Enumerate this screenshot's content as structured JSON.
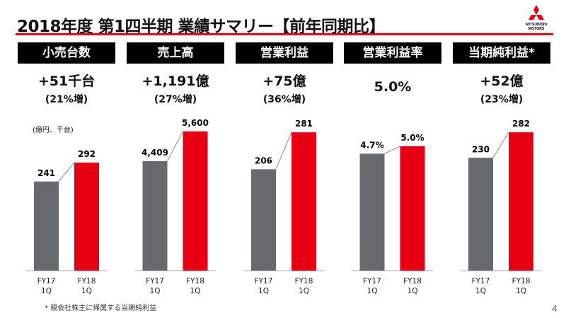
{
  "title": "2018年度 第1四半期 業績サマリー【前年同期比】",
  "logo_text": "MITSUBISHI MOTORS",
  "unit_label": "(億円、千台)",
  "footnote": "* 親会社株主に帰属する当期純利益",
  "page_number": "4",
  "colors": {
    "fy17": "#696a6e",
    "fy18": "#e60012",
    "accent": "#e60012"
  },
  "panels": [
    {
      "header": "小売台数",
      "change": "+51千台",
      "change_pct": "(21%増)"
    },
    {
      "header": "売上高",
      "change": "+1,191億",
      "change_pct": "(27%増)"
    },
    {
      "header": "営業利益",
      "change": "+75億",
      "change_pct": "(36%増)"
    },
    {
      "header": "営業利益率",
      "change": "5.0%",
      "change_pct": ""
    },
    {
      "header": "当期純利益*",
      "change": "+52億",
      "change_pct": "(23%増)"
    }
  ],
  "chart_data": [
    {
      "type": "bar",
      "categories": [
        "FY17\n1Q",
        "FY18\n1Q"
      ],
      "values": [
        241,
        292
      ],
      "labels": [
        "241",
        "292"
      ],
      "ylim": [
        0,
        382
      ]
    },
    {
      "type": "bar",
      "categories": [
        "FY17\n1Q",
        "FY18\n1Q"
      ],
      "values": [
        4409,
        5600
      ],
      "labels": [
        "4,409",
        "5,600"
      ],
      "ylim": [
        0,
        5685
      ]
    },
    {
      "type": "bar",
      "categories": [
        "FY17\n1Q",
        "FY18\n1Q"
      ],
      "values": [
        206,
        281
      ],
      "labels": [
        "206",
        "281"
      ],
      "ylim": [
        0,
        287
      ]
    },
    {
      "type": "bar",
      "categories": [
        "FY17\n1Q",
        "FY18\n1Q"
      ],
      "values": [
        4.7,
        5.0
      ],
      "labels": [
        "4.7%",
        "5.0%"
      ],
      "ylim": [
        0,
        5.68
      ]
    },
    {
      "type": "bar",
      "categories": [
        "FY17\n1Q",
        "FY18\n1Q"
      ],
      "values": [
        230,
        282
      ],
      "labels": [
        "230",
        "282"
      ],
      "ylim": [
        0,
        288
      ]
    }
  ]
}
